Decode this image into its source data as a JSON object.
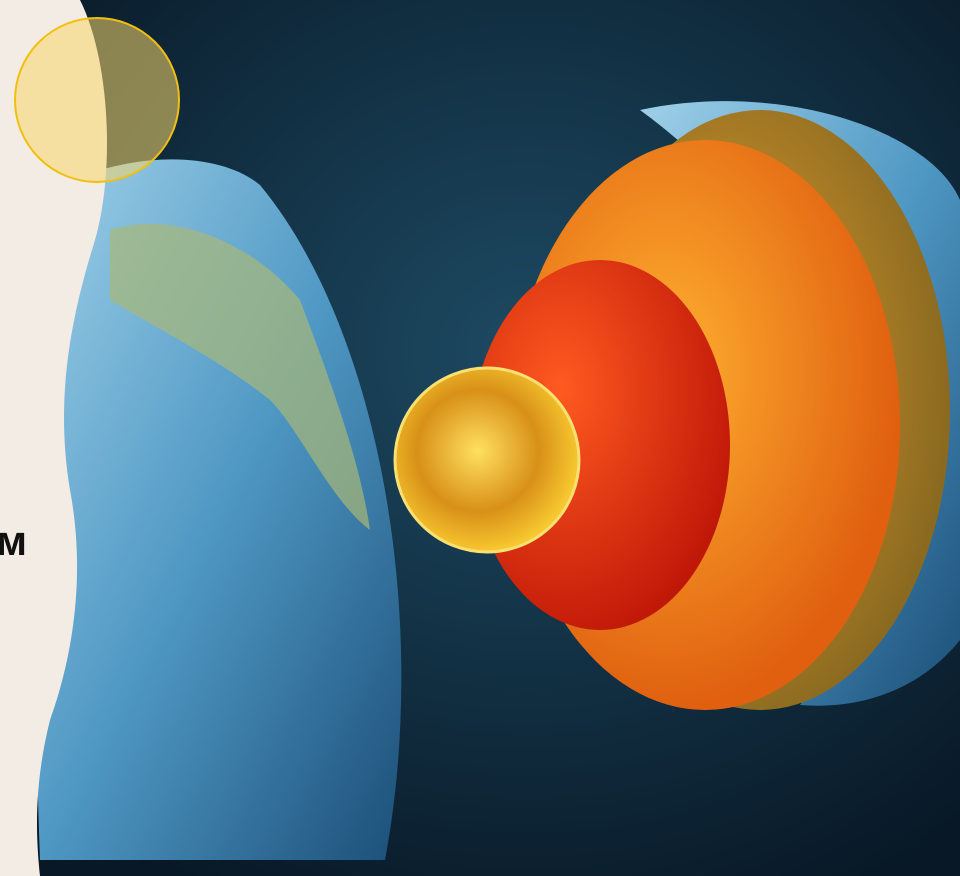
{
  "slide": {
    "text_fragment": "м"
  }
}
